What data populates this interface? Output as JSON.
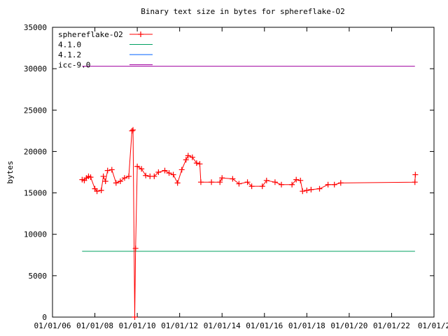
{
  "chart_data": {
    "type": "line",
    "title": "Binary text size in bytes for sphereflake-O2",
    "ylabel": "bytes",
    "xlim": [
      2006,
      2024
    ],
    "xticks": [
      {
        "value": 2006,
        "label": "01/01/06"
      },
      {
        "value": 2008,
        "label": "01/01/08"
      },
      {
        "value": 2010,
        "label": "01/01/10"
      },
      {
        "value": 2012,
        "label": "01/01/12"
      },
      {
        "value": 2014,
        "label": "01/01/14"
      },
      {
        "value": 2016,
        "label": "01/01/16"
      },
      {
        "value": 2018,
        "label": "01/01/18"
      },
      {
        "value": 2020,
        "label": "01/01/20"
      },
      {
        "value": 2022,
        "label": "01/01/22"
      },
      {
        "value": 2024,
        "label": "01/01/2"
      }
    ],
    "ylim": [
      0,
      35000
    ],
    "yticks": [
      0,
      5000,
      10000,
      15000,
      20000,
      25000,
      30000,
      35000
    ],
    "legend": "top-left",
    "series": [
      {
        "name": "sphereflake-O2",
        "color": "#ff0000",
        "marker": "+",
        "x": [
          2007.4,
          2007.5,
          2007.6,
          2007.7,
          2007.8,
          2008.0,
          2008.1,
          2008.3,
          2008.4,
          2008.5,
          2008.6,
          2008.8,
          2009.0,
          2009.2,
          2009.4,
          2009.6,
          2009.75,
          2009.8,
          2009.88,
          2009.92,
          2010.0,
          2010.2,
          2010.4,
          2010.6,
          2010.8,
          2011.0,
          2011.3,
          2011.5,
          2011.7,
          2011.9,
          2012.1,
          2012.3,
          2012.4,
          2012.6,
          2012.8,
          2012.95,
          2013.0,
          2013.5,
          2013.9,
          2014.0,
          2014.5,
          2014.8,
          2015.2,
          2015.4,
          2015.9,
          2016.1,
          2016.5,
          2016.8,
          2017.3,
          2017.5,
          2017.7,
          2017.8,
          2018.0,
          2018.2,
          2018.6,
          2019.0,
          2019.3,
          2019.6,
          2023.1,
          2023.12
        ],
        "values": [
          16600,
          16500,
          16800,
          17000,
          16900,
          15500,
          15200,
          15300,
          17000,
          16400,
          17700,
          17800,
          16200,
          16400,
          16800,
          17000,
          22500,
          22600,
          0,
          8300,
          18200,
          17900,
          17100,
          17000,
          17000,
          17500,
          17700,
          17400,
          17200,
          16200,
          17800,
          19000,
          19500,
          19300,
          18600,
          18500,
          16300,
          16300,
          16300,
          16800,
          16700,
          16100,
          16300,
          15800,
          15800,
          16500,
          16300,
          16000,
          16000,
          16600,
          16500,
          15200,
          15300,
          15400,
          15500,
          16000,
          16000,
          16200,
          16300,
          17200
        ]
      },
      {
        "name": "4.1.0",
        "color": "#00a060",
        "x": [
          2007.4,
          2023.1
        ],
        "values": [
          7950,
          7950
        ]
      },
      {
        "name": "4.1.2",
        "color": "#0060ff",
        "x": [
          2007.4,
          2023.1
        ],
        "values": [
          7950,
          7950
        ]
      },
      {
        "name": "icc-9.0",
        "color": "#a000a0",
        "x": [
          2007.4,
          2023.1
        ],
        "values": [
          30300,
          30300
        ]
      }
    ]
  }
}
